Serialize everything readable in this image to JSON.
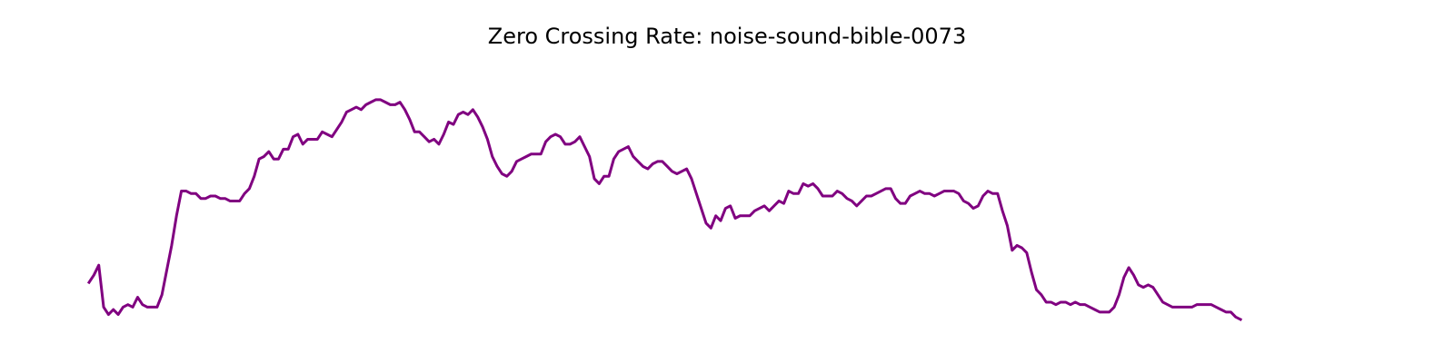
{
  "chart_data": {
    "type": "line",
    "title": "Zero Crossing Rate: noise-sound-bible-0073",
    "xlabel": "",
    "ylabel": "",
    "axes_visible": false,
    "grid": false,
    "line_color": "#800080",
    "xlim": [
      0,
      257
    ],
    "ylim": [
      0,
      1
    ],
    "series": [
      {
        "values": [
          0.15,
          0.18,
          0.22,
          0.05,
          0.02,
          0.04,
          0.02,
          0.05,
          0.06,
          0.05,
          0.09,
          0.06,
          0.05,
          0.05,
          0.05,
          0.1,
          0.2,
          0.3,
          0.42,
          0.52,
          0.52,
          0.51,
          0.51,
          0.49,
          0.49,
          0.5,
          0.5,
          0.49,
          0.49,
          0.48,
          0.48,
          0.48,
          0.51,
          0.53,
          0.58,
          0.65,
          0.66,
          0.68,
          0.65,
          0.65,
          0.69,
          0.69,
          0.74,
          0.75,
          0.71,
          0.73,
          0.73,
          0.73,
          0.76,
          0.75,
          0.74,
          0.77,
          0.8,
          0.84,
          0.85,
          0.86,
          0.85,
          0.87,
          0.88,
          0.89,
          0.89,
          0.88,
          0.87,
          0.87,
          0.88,
          0.85,
          0.81,
          0.76,
          0.76,
          0.74,
          0.72,
          0.73,
          0.71,
          0.75,
          0.8,
          0.79,
          0.83,
          0.84,
          0.83,
          0.85,
          0.82,
          0.78,
          0.73,
          0.66,
          0.62,
          0.59,
          0.58,
          0.6,
          0.64,
          0.65,
          0.66,
          0.67,
          0.67,
          0.67,
          0.72,
          0.74,
          0.75,
          0.74,
          0.71,
          0.71,
          0.72,
          0.74,
          0.7,
          0.66,
          0.57,
          0.55,
          0.58,
          0.58,
          0.65,
          0.68,
          0.69,
          0.7,
          0.66,
          0.64,
          0.62,
          0.61,
          0.63,
          0.64,
          0.64,
          0.62,
          0.6,
          0.59,
          0.6,
          0.61,
          0.57,
          0.51,
          0.45,
          0.39,
          0.37,
          0.42,
          0.4,
          0.45,
          0.46,
          0.41,
          0.42,
          0.42,
          0.42,
          0.44,
          0.45,
          0.46,
          0.44,
          0.46,
          0.48,
          0.47,
          0.52,
          0.51,
          0.51,
          0.55,
          0.54,
          0.55,
          0.53,
          0.5,
          0.5,
          0.5,
          0.52,
          0.51,
          0.49,
          0.48,
          0.46,
          0.48,
          0.5,
          0.5,
          0.51,
          0.52,
          0.53,
          0.53,
          0.49,
          0.47,
          0.47,
          0.5,
          0.51,
          0.52,
          0.51,
          0.51,
          0.5,
          0.51,
          0.52,
          0.52,
          0.52,
          0.51,
          0.48,
          0.47,
          0.45,
          0.46,
          0.5,
          0.52,
          0.51,
          0.51,
          0.44,
          0.38,
          0.28,
          0.3,
          0.29,
          0.27,
          0.19,
          0.12,
          0.1,
          0.07,
          0.07,
          0.06,
          0.07,
          0.07,
          0.06,
          0.07,
          0.06,
          0.06,
          0.05,
          0.04,
          0.03,
          0.03,
          0.03,
          0.05,
          0.1,
          0.17,
          0.21,
          0.18,
          0.14,
          0.13,
          0.14,
          0.13,
          0.1,
          0.07,
          0.06,
          0.05,
          0.05,
          0.05,
          0.05,
          0.05,
          0.06,
          0.06,
          0.06,
          0.06,
          0.05,
          0.04,
          0.03,
          0.03,
          0.01,
          0.0
        ]
      }
    ]
  }
}
